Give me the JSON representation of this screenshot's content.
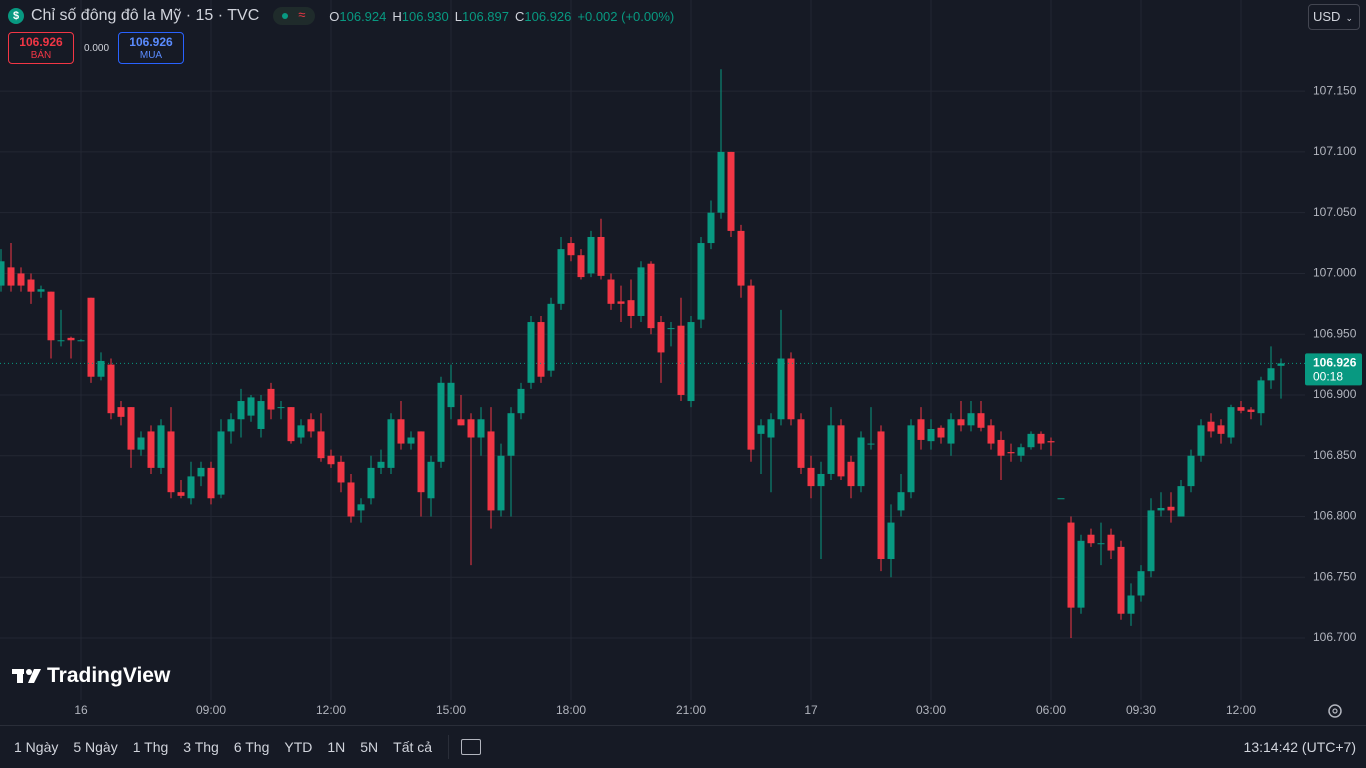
{
  "header": {
    "title": "Chỉ số đông đô la Mỹ · 15 · TVC",
    "ohlc": [
      {
        "label": "O",
        "value": "106.924"
      },
      {
        "label": "H",
        "value": "106.930"
      },
      {
        "label": "L",
        "value": "106.897"
      },
      {
        "label": "C",
        "value": "106.926"
      }
    ],
    "change": "+0.002 (+0.00%)",
    "currency": "USD"
  },
  "trade": {
    "sell_price": "106.926",
    "sell_label": "BÁN",
    "spread": "0.000",
    "buy_price": "106.926",
    "buy_label": "MUA"
  },
  "logo": "TradingView",
  "toolbar": {
    "ranges": [
      "1 Ngày",
      "5 Ngày",
      "1 Thg",
      "3 Thg",
      "6 Thg",
      "YTD",
      "1N",
      "5N",
      "Tất cả"
    ],
    "clock": "13:14:42 (UTC+7)"
  },
  "chart_data": {
    "type": "candlestick",
    "up_color": "#089981",
    "down_color": "#f23645",
    "grid": true,
    "countdown": "00:18",
    "categories": [
      null,
      null,
      null,
      null,
      null,
      null,
      null,
      null,
      "16",
      null,
      null,
      null,
      null,
      null,
      null,
      null,
      null,
      null,
      null,
      null,
      null,
      "09:00",
      null,
      null,
      null,
      null,
      null,
      null,
      null,
      null,
      null,
      null,
      null,
      "12:00",
      null,
      null,
      null,
      null,
      null,
      null,
      null,
      null,
      null,
      null,
      null,
      "15:00",
      null,
      null,
      null,
      null,
      null,
      null,
      null,
      null,
      null,
      null,
      null,
      "18:00",
      null,
      null,
      null,
      null,
      null,
      null,
      null,
      null,
      null,
      null,
      null,
      "21:00",
      null,
      null,
      null,
      null,
      null,
      null,
      null,
      null,
      null,
      null,
      null,
      "17",
      null,
      null,
      null,
      null,
      null,
      null,
      null,
      null,
      null,
      null,
      null,
      "03:00",
      null,
      null,
      null,
      null,
      null,
      null,
      null,
      null,
      null,
      null,
      null,
      "06:00",
      null,
      null,
      null,
      null,
      null,
      null,
      null,
      null,
      "09:30",
      null,
      null,
      null,
      null,
      null,
      null,
      null,
      null,
      null,
      "12:00",
      null,
      null,
      null,
      null
    ],
    "open": [
      106.99,
      107.005,
      107.0,
      106.995,
      106.985,
      106.985,
      106.945,
      106.947,
      106.945,
      106.98,
      106.915,
      106.925,
      106.89,
      106.89,
      106.855,
      106.87,
      106.84,
      106.87,
      106.82,
      106.815,
      106.833,
      106.84,
      106.818,
      106.87,
      106.88,
      106.883,
      106.872,
      106.905,
      106.89,
      106.89,
      106.865,
      106.88,
      106.87,
      106.85,
      106.845,
      106.828,
      106.805,
      106.815,
      106.84,
      106.84,
      106.88,
      106.86,
      106.87,
      106.815,
      106.845,
      106.89,
      106.88,
      106.88,
      106.865,
      106.87,
      106.805,
      106.85,
      106.885,
      106.91,
      106.96,
      106.92,
      106.975,
      107.025,
      107.015,
      107.0,
      107.03,
      106.995,
      106.977,
      106.978,
      106.965,
      107.008,
      106.96,
      106.955,
      106.957,
      106.895,
      106.962,
      107.025,
      107.05,
      107.1,
      107.035,
      106.99,
      106.868,
      106.865,
      106.88,
      106.93,
      106.88,
      106.84,
      106.825,
      106.835,
      106.875,
      106.845,
      106.825,
      106.86,
      106.87,
      106.765,
      106.805,
      106.82,
      106.88,
      106.862,
      106.873,
      106.86,
      106.88,
      106.875,
      106.885,
      106.875,
      106.863,
      106.853,
      106.85,
      106.857,
      106.868,
      106.862,
      106.815,
      106.795,
      106.725,
      106.785,
      106.778,
      106.785,
      106.775,
      106.72,
      106.735,
      106.755,
      106.805,
      106.808,
      106.8,
      106.825,
      106.85,
      106.878,
      106.875,
      106.865,
      106.89,
      106.888,
      106.885,
      106.912,
      106.924
    ],
    "high": [
      107.02,
      107.025,
      107.005,
      107.0,
      106.99,
      106.985,
      106.97,
      106.948,
      106.946,
      106.98,
      106.935,
      106.93,
      106.895,
      106.89,
      106.87,
      106.875,
      106.88,
      106.89,
      106.83,
      106.845,
      106.845,
      106.845,
      106.88,
      106.885,
      106.905,
      106.9,
      106.9,
      106.91,
      106.895,
      106.89,
      106.88,
      106.885,
      106.885,
      106.855,
      106.85,
      106.835,
      106.815,
      106.85,
      106.855,
      106.885,
      106.895,
      106.87,
      106.87,
      106.85,
      106.915,
      106.925,
      106.9,
      106.885,
      106.89,
      106.89,
      106.86,
      106.89,
      106.91,
      106.965,
      106.965,
      106.98,
      107.03,
      107.03,
      107.02,
      107.035,
      107.045,
      107.0,
      106.99,
      106.995,
      107.01,
      107.01,
      106.965,
      106.96,
      106.98,
      106.965,
      107.03,
      107.06,
      107.168,
      107.1,
      107.04,
      106.995,
      106.88,
      106.885,
      106.97,
      106.935,
      106.885,
      106.85,
      106.845,
      106.89,
      106.88,
      106.85,
      106.87,
      106.89,
      106.875,
      106.81,
      106.835,
      106.88,
      106.89,
      106.88,
      106.875,
      106.885,
      106.895,
      106.895,
      106.895,
      106.88,
      106.87,
      106.86,
      106.86,
      106.87,
      106.87,
      106.865,
      106.815,
      106.8,
      106.785,
      106.79,
      106.795,
      106.79,
      106.78,
      106.745,
      106.76,
      106.815,
      106.82,
      106.82,
      106.83,
      106.855,
      106.88,
      106.885,
      106.88,
      106.892,
      106.895,
      106.89,
      106.915,
      106.94,
      106.93
    ],
    "low": [
      106.985,
      106.985,
      106.985,
      106.975,
      106.98,
      106.93,
      106.94,
      106.93,
      106.944,
      106.91,
      106.912,
      106.88,
      106.875,
      106.84,
      106.85,
      106.835,
      106.835,
      106.815,
      106.815,
      106.81,
      106.825,
      106.81,
      106.815,
      106.86,
      106.865,
      106.878,
      106.865,
      106.88,
      106.88,
      106.86,
      106.86,
      106.865,
      106.845,
      106.84,
      106.82,
      106.795,
      106.795,
      106.81,
      106.835,
      106.835,
      106.855,
      106.855,
      106.8,
      106.8,
      106.84,
      106.88,
      106.875,
      106.76,
      106.85,
      106.79,
      106.8,
      106.8,
      106.88,
      106.905,
      106.91,
      106.915,
      106.97,
      107.01,
      106.995,
      106.997,
      106.995,
      106.97,
      106.96,
      106.955,
      106.96,
      106.95,
      106.91,
      106.94,
      106.895,
      106.89,
      106.955,
      107.02,
      107.045,
      107.03,
      106.98,
      106.845,
      106.835,
      106.82,
      106.875,
      106.875,
      106.835,
      106.815,
      106.765,
      106.83,
      106.83,
      106.815,
      106.82,
      106.855,
      106.755,
      106.75,
      106.8,
      106.815,
      106.855,
      106.855,
      106.86,
      106.85,
      106.87,
      106.87,
      106.87,
      106.855,
      106.83,
      106.845,
      106.845,
      106.855,
      106.855,
      106.85,
      106.815,
      106.7,
      106.72,
      106.775,
      106.76,
      106.765,
      106.715,
      106.71,
      106.73,
      106.75,
      106.8,
      106.795,
      106.8,
      106.82,
      106.845,
      106.865,
      106.86,
      106.86,
      106.885,
      106.88,
      106.875,
      106.905,
      106.897
    ],
    "close": [
      107.01,
      106.99,
      106.99,
      106.985,
      106.987,
      106.945,
      106.945,
      106.945,
      106.945,
      106.915,
      106.928,
      106.885,
      106.882,
      106.855,
      106.865,
      106.84,
      106.875,
      106.82,
      106.817,
      106.833,
      106.84,
      106.815,
      106.87,
      106.88,
      106.895,
      106.898,
      106.895,
      106.888,
      106.89,
      106.862,
      106.875,
      106.87,
      106.848,
      106.843,
      106.828,
      106.8,
      106.81,
      106.84,
      106.845,
      106.88,
      106.86,
      106.865,
      106.82,
      106.845,
      106.91,
      106.91,
      106.875,
      106.865,
      106.88,
      106.805,
      106.85,
      106.885,
      106.905,
      106.96,
      106.915,
      106.975,
      107.02,
      107.015,
      106.997,
      107.03,
      106.998,
      106.975,
      106.975,
      106.965,
      107.005,
      106.955,
      106.935,
      106.955,
      106.9,
      106.96,
      107.025,
      107.05,
      107.1,
      107.035,
      106.99,
      106.855,
      106.875,
      106.88,
      106.93,
      106.88,
      106.84,
      106.825,
      106.835,
      106.875,
      106.833,
      106.825,
      106.865,
      106.86,
      106.765,
      106.795,
      106.82,
      106.875,
      106.863,
      106.872,
      106.865,
      106.88,
      106.875,
      106.885,
      106.873,
      106.86,
      106.85,
      106.852,
      106.857,
      106.868,
      106.86,
      106.861,
      106.815,
      106.725,
      106.78,
      106.778,
      106.778,
      106.772,
      106.72,
      106.735,
      106.755,
      106.805,
      106.807,
      106.805,
      106.825,
      106.85,
      106.875,
      106.87,
      106.868,
      106.89,
      106.887,
      106.886,
      106.912,
      106.922,
      106.926
    ],
    "ylim": [
      106.649,
      107.225
    ],
    "yticks": [
      {
        "value": 106.7,
        "label": "106.700"
      },
      {
        "value": 106.75,
        "label": "106.750"
      },
      {
        "value": 106.8,
        "label": "106.800"
      },
      {
        "value": 106.85,
        "label": "106.850"
      },
      {
        "value": 106.9,
        "label": "106.900"
      },
      {
        "value": 106.95,
        "label": "106.950"
      },
      {
        "value": 107,
        "label": "107.000"
      },
      {
        "value": 107.05,
        "label": "107.050"
      },
      {
        "value": 107.1,
        "label": "107.100"
      },
      {
        "value": 107.15,
        "label": "107.150"
      }
    ]
  }
}
